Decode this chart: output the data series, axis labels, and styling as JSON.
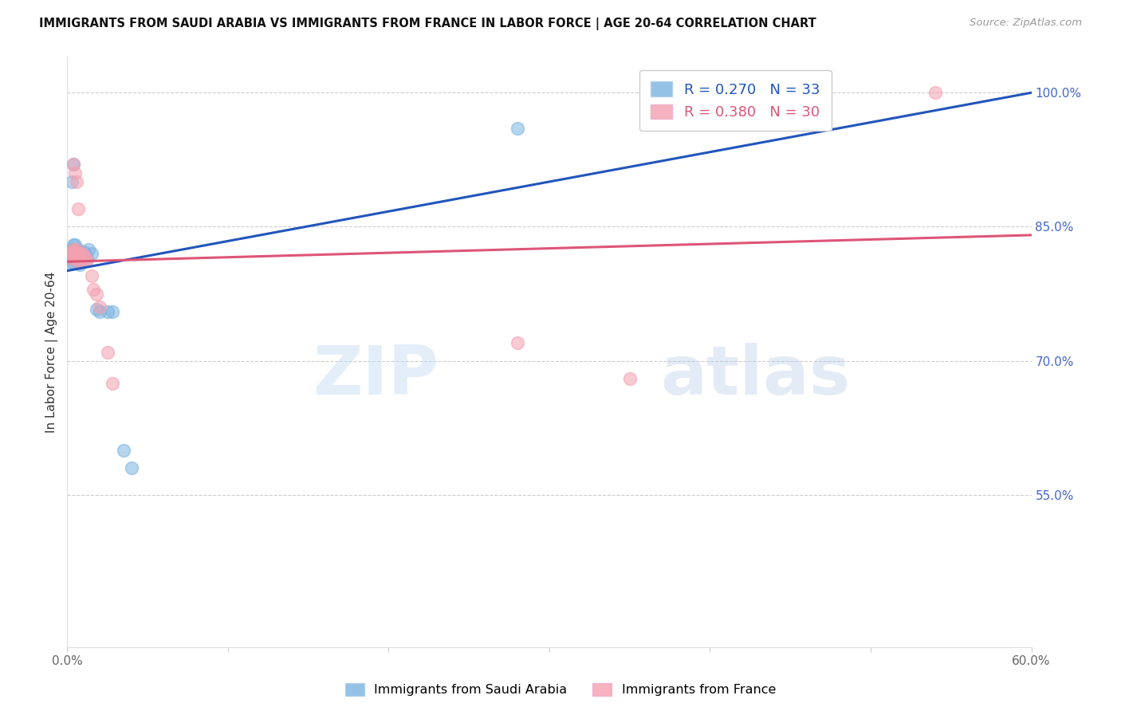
{
  "title": "IMMIGRANTS FROM SAUDI ARABIA VS IMMIGRANTS FROM FRANCE IN LABOR FORCE | AGE 20-64 CORRELATION CHART",
  "source": "Source: ZipAtlas.com",
  "ylabel": "In Labor Force | Age 20-64",
  "xlim": [
    0.0,
    0.6
  ],
  "ylim": [
    0.38,
    1.04
  ],
  "x_ticks": [
    0.0,
    0.1,
    0.2,
    0.3,
    0.4,
    0.5,
    0.6
  ],
  "x_tick_labels": [
    "0.0%",
    "",
    "",
    "",
    "",
    "",
    "60.0%"
  ],
  "y_ticks_right": [
    0.55,
    0.7,
    0.85,
    1.0
  ],
  "y_tick_labels_right": [
    "55.0%",
    "70.0%",
    "85.0%",
    "100.0%"
  ],
  "saudi_color": "#7ab3e0",
  "france_color": "#f4a0b0",
  "saudi_line_color": "#2255bb",
  "france_line_color": "#dd5577",
  "watermark_zip": "ZIP",
  "watermark_atlas": "atlas",
  "legend_label_saudi": "R = 0.270   N = 33",
  "legend_label_france": "R = 0.380   N = 30",
  "saudi_x": [
    0.001,
    0.002,
    0.002,
    0.003,
    0.003,
    0.003,
    0.004,
    0.004,
    0.004,
    0.005,
    0.005,
    0.005,
    0.006,
    0.006,
    0.007,
    0.007,
    0.008,
    0.008,
    0.009,
    0.01,
    0.011,
    0.012,
    0.013,
    0.015,
    0.018,
    0.02,
    0.025,
    0.028,
    0.035,
    0.04,
    0.003,
    0.004,
    0.28
  ],
  "saudi_y": [
    0.82,
    0.815,
    0.81,
    0.825,
    0.82,
    0.815,
    0.83,
    0.825,
    0.81,
    0.83,
    0.82,
    0.815,
    0.818,
    0.812,
    0.825,
    0.815,
    0.812,
    0.808,
    0.82,
    0.822,
    0.818,
    0.815,
    0.825,
    0.82,
    0.758,
    0.755,
    0.755,
    0.755,
    0.6,
    0.58,
    0.9,
    0.92,
    0.96
  ],
  "france_x": [
    0.002,
    0.003,
    0.003,
    0.004,
    0.004,
    0.005,
    0.005,
    0.006,
    0.006,
    0.007,
    0.007,
    0.008,
    0.008,
    0.009,
    0.01,
    0.011,
    0.012,
    0.015,
    0.016,
    0.018,
    0.02,
    0.025,
    0.028,
    0.28,
    0.35,
    0.54,
    0.004,
    0.005,
    0.006,
    0.007
  ],
  "france_y": [
    0.815,
    0.822,
    0.818,
    0.825,
    0.82,
    0.822,
    0.818,
    0.825,
    0.815,
    0.82,
    0.81,
    0.818,
    0.812,
    0.82,
    0.818,
    0.815,
    0.812,
    0.795,
    0.78,
    0.775,
    0.76,
    0.71,
    0.675,
    0.72,
    0.68,
    1.0,
    0.92,
    0.91,
    0.9,
    0.87
  ]
}
